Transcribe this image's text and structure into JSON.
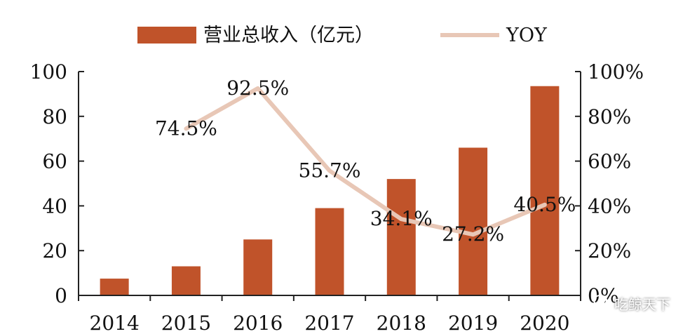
{
  "chart_data": {
    "type": "bar",
    "categories": [
      "2014",
      "2015",
      "2016",
      "2017",
      "2018",
      "2019",
      "2020"
    ],
    "series": [
      {
        "name": "营业总收入（亿元）",
        "type": "bar",
        "axis": "left",
        "values": [
          7.5,
          13,
          25,
          39,
          52,
          66,
          93.5
        ]
      },
      {
        "name": "YOY",
        "type": "line",
        "axis": "right",
        "values": [
          null,
          74.5,
          92.5,
          55.7,
          34.1,
          27.2,
          40.5
        ],
        "labels": [
          "",
          "74.5%",
          "92.5%",
          "55.7%",
          "34.1%",
          "27.2%",
          "40.5%"
        ]
      }
    ],
    "ylim": [
      0,
      100
    ],
    "y_ticks": [
      "0",
      "20",
      "40",
      "60",
      "80",
      "100"
    ],
    "y2lim": [
      0,
      100
    ],
    "y2_ticks": [
      "0%",
      "20%",
      "40%",
      "60%",
      "80%",
      "100%"
    ],
    "legend_position": "top",
    "grid": false,
    "colors": {
      "bar": "#c0532a",
      "line": "#e8c7b6",
      "text": "#111111",
      "axis": "#222222"
    }
  },
  "watermark": {
    "text": "吃鲸天下",
    "icon": "wechat-icon"
  }
}
